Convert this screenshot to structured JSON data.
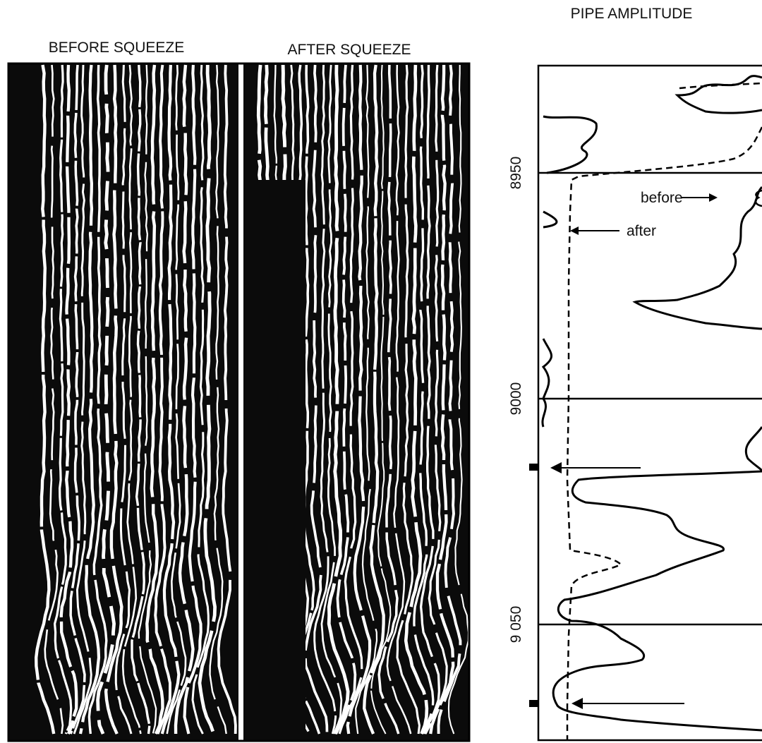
{
  "figure": {
    "panels": {
      "before": {
        "title": "BEFORE SQUEEZE"
      },
      "after": {
        "title": "AFTER SQUEEZE"
      }
    },
    "log": {
      "title": "PIPE AMPLITUDE",
      "depths": [
        "8950",
        "9000",
        "9 050"
      ],
      "annotations": {
        "before": "before",
        "after": "after"
      }
    }
  }
}
